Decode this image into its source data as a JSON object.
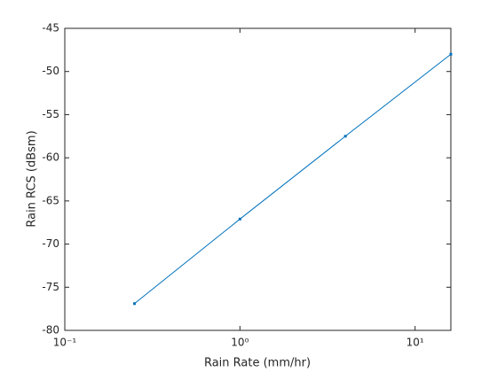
{
  "chart_data": {
    "type": "line",
    "x_label": "Rain Rate (mm/hr)",
    "y_label": "Rain RCS (dBsm)",
    "x_scale": "log",
    "x": [
      0.25,
      1,
      4,
      16
    ],
    "series": [
      {
        "color": "#0072bd",
        "values": [
          -76.9,
          -67.1,
          -57.5,
          -48.0
        ]
      }
    ],
    "xlim": [
      0.1,
      16
    ],
    "xticks": [
      {
        "value": 0.1,
        "label": "10⁻¹"
      },
      {
        "value": 1,
        "label": "10⁰"
      },
      {
        "value": 10,
        "label": "10¹"
      }
    ],
    "ylim": [
      -80,
      -45
    ],
    "yticks": [
      -80,
      -75,
      -70,
      -65,
      -60,
      -55,
      -50,
      -45
    ],
    "grid": false
  }
}
